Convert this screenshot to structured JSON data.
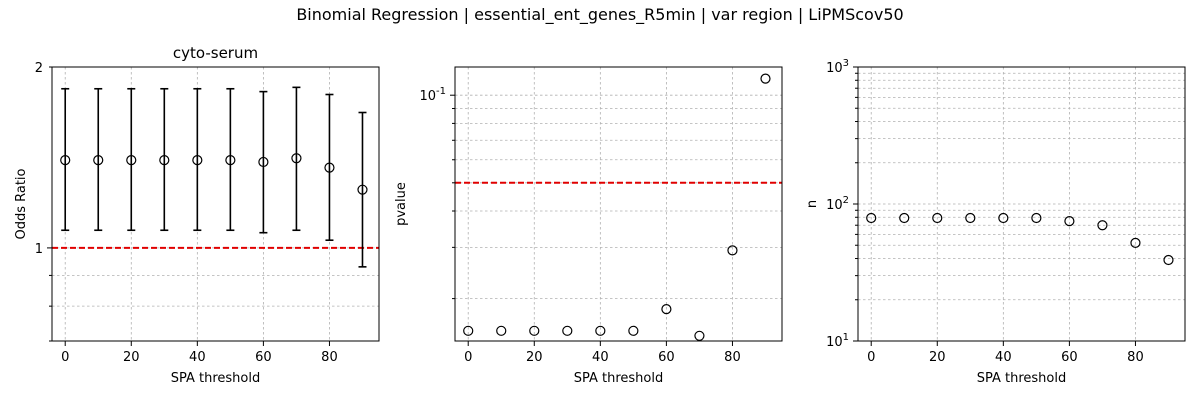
{
  "figure": {
    "suptitle": "Binomial Regression | essential_ent_genes_R5min | var region | LiPMScov50"
  },
  "chart_data": [
    {
      "type": "scatter",
      "title": "cyto-serum",
      "xlabel": "SPA threshold",
      "ylabel": "Odds Ratio",
      "yscale": "log",
      "ylim": [
        0.7,
        2.0
      ],
      "xlim": [
        -4,
        95
      ],
      "grid": true,
      "x": [
        0,
        10,
        20,
        30,
        40,
        50,
        60,
        70,
        80,
        90
      ],
      "y": [
        1.4,
        1.4,
        1.4,
        1.4,
        1.4,
        1.4,
        1.39,
        1.41,
        1.36,
        1.25
      ],
      "err_low": [
        1.07,
        1.07,
        1.07,
        1.07,
        1.07,
        1.07,
        1.06,
        1.07,
        1.03,
        0.93
      ],
      "err_high": [
        1.84,
        1.84,
        1.84,
        1.84,
        1.84,
        1.84,
        1.82,
        1.85,
        1.8,
        1.68
      ],
      "reference_line": 1,
      "yticks": [
        {
          "v": 1,
          "label": "1"
        },
        {
          "v": 2,
          "label": "2"
        }
      ],
      "xticks": [
        0,
        20,
        40,
        60,
        80
      ]
    },
    {
      "type": "scatter",
      "title": "",
      "xlabel": "SPA threshold",
      "ylabel": "pvalue",
      "yscale": "log",
      "ylim": [
        0.0143,
        0.125
      ],
      "xlim": [
        -4,
        95
      ],
      "grid": true,
      "x": [
        0,
        10,
        20,
        30,
        40,
        50,
        60,
        70,
        80,
        90
      ],
      "y": [
        0.0155,
        0.0155,
        0.0155,
        0.0155,
        0.0155,
        0.0155,
        0.0184,
        0.0149,
        0.0293,
        0.114
      ],
      "reference_line": 0.05,
      "yticks": [
        {
          "v": 0.1,
          "label": "10^-1"
        }
      ],
      "xticks": [
        0,
        20,
        40,
        60,
        80
      ]
    },
    {
      "type": "scatter",
      "title": "",
      "xlabel": "SPA threshold",
      "ylabel": "n",
      "yscale": "log",
      "ylim": [
        10,
        1000
      ],
      "xlim": [
        -4,
        95
      ],
      "grid": true,
      "x": [
        0,
        10,
        20,
        30,
        40,
        50,
        60,
        70,
        80,
        90
      ],
      "y": [
        79,
        79,
        79,
        79,
        79,
        79,
        75,
        70,
        52,
        39
      ],
      "yticks": [
        {
          "v": 10,
          "label": "10^1"
        },
        {
          "v": 100,
          "label": "10^2"
        },
        {
          "v": 1000,
          "label": "10^3"
        }
      ],
      "xticks": [
        0,
        20,
        40,
        60,
        80
      ]
    }
  ]
}
